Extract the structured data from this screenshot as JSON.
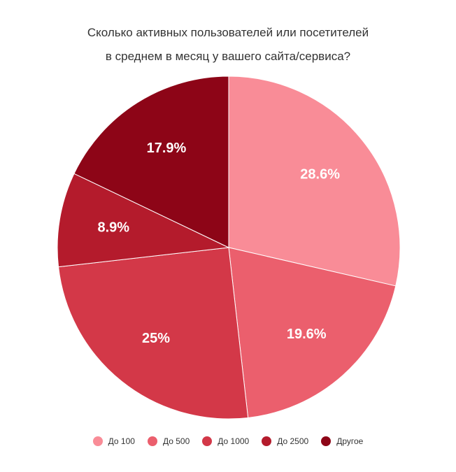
{
  "chart_data": {
    "type": "pie",
    "title_lines": [
      "Сколько активных пользователей или посетителей",
      "в среднем в месяц у вашего сайта/сервиса?"
    ],
    "slices": [
      {
        "label": "До 100",
        "value": 28.6,
        "display": "28.6%",
        "color": "#f98c97"
      },
      {
        "label": "До 500",
        "value": 19.6,
        "display": "19.6%",
        "color": "#eb5f6d"
      },
      {
        "label": "До 1000",
        "value": 25.0,
        "display": "25%",
        "color": "#d33848"
      },
      {
        "label": "До 2500",
        "value": 8.9,
        "display": "8.9%",
        "color": "#b41b2c"
      },
      {
        "label": "Другое",
        "value": 17.9,
        "display": "17.9%",
        "color": "#8d0517"
      }
    ],
    "start_angle": "top",
    "direction": "clockwise",
    "legend_position": "bottom"
  }
}
